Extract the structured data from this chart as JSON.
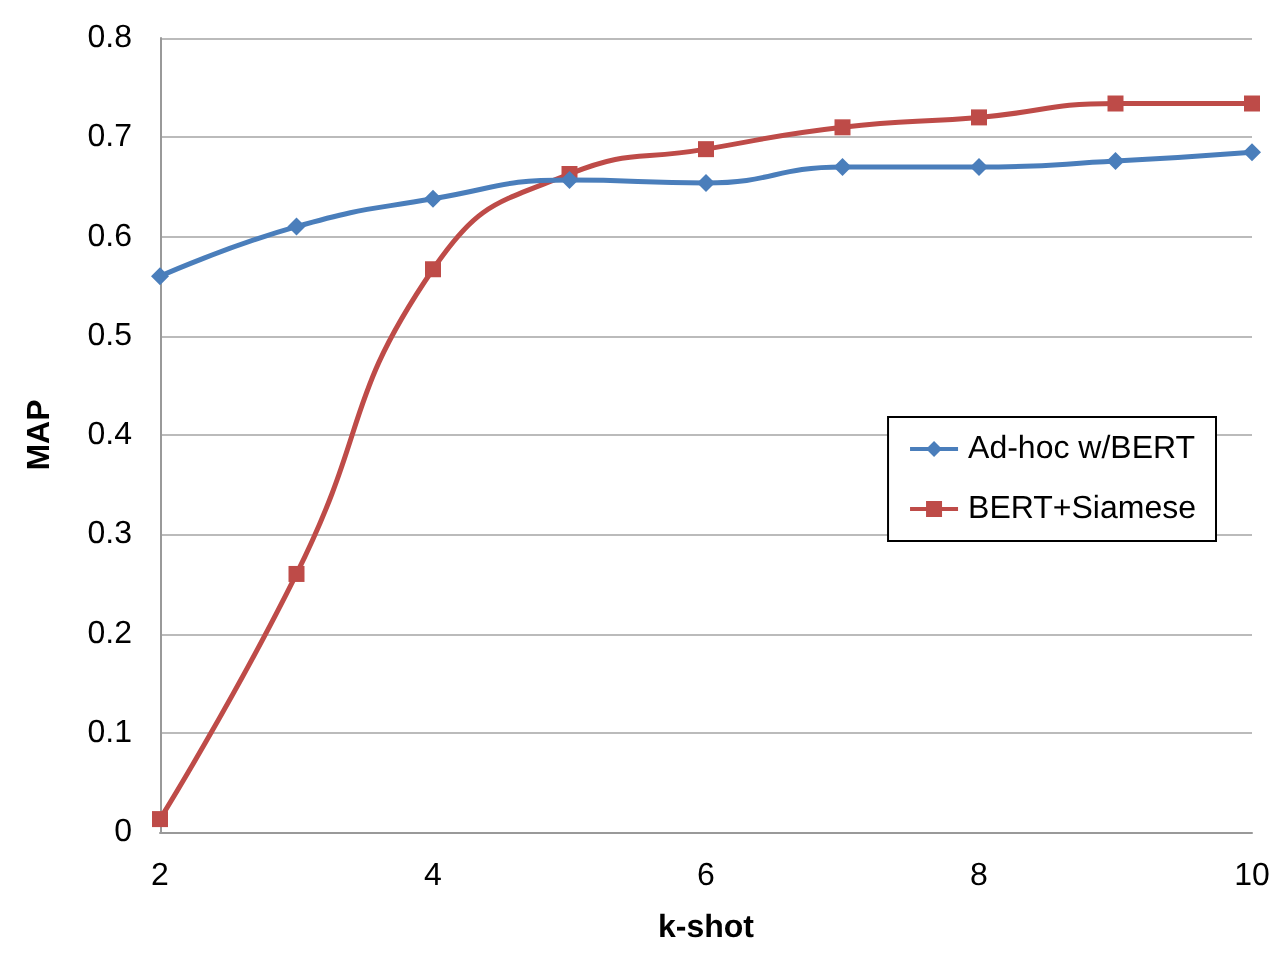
{
  "chart_data": {
    "type": "line",
    "xlabel": "k-shot",
    "ylabel": "MAP",
    "x": [
      2,
      3,
      4,
      5,
      6,
      7,
      8,
      9,
      10
    ],
    "xlim": [
      2,
      10
    ],
    "xticks": [
      2,
      4,
      6,
      8,
      10
    ],
    "ylim": [
      0,
      0.8
    ],
    "yticks": [
      0,
      0.1,
      0.2,
      0.3,
      0.4,
      0.5,
      0.6,
      0.7,
      0.8
    ],
    "grid": "y",
    "legend": "right",
    "series": [
      {
        "name": "Ad-hoc w/BERT",
        "color": "#4a7ebb",
        "marker": "diamond",
        "values": [
          0.56,
          0.61,
          0.638,
          0.657,
          0.654,
          0.67,
          0.67,
          0.676,
          0.685
        ]
      },
      {
        "name": "BERT+Siamese",
        "color": "#be4b48",
        "marker": "square",
        "values": [
          0.013,
          0.26,
          0.567,
          0.663,
          0.688,
          0.71,
          0.72,
          0.734,
          0.734
        ]
      }
    ]
  }
}
